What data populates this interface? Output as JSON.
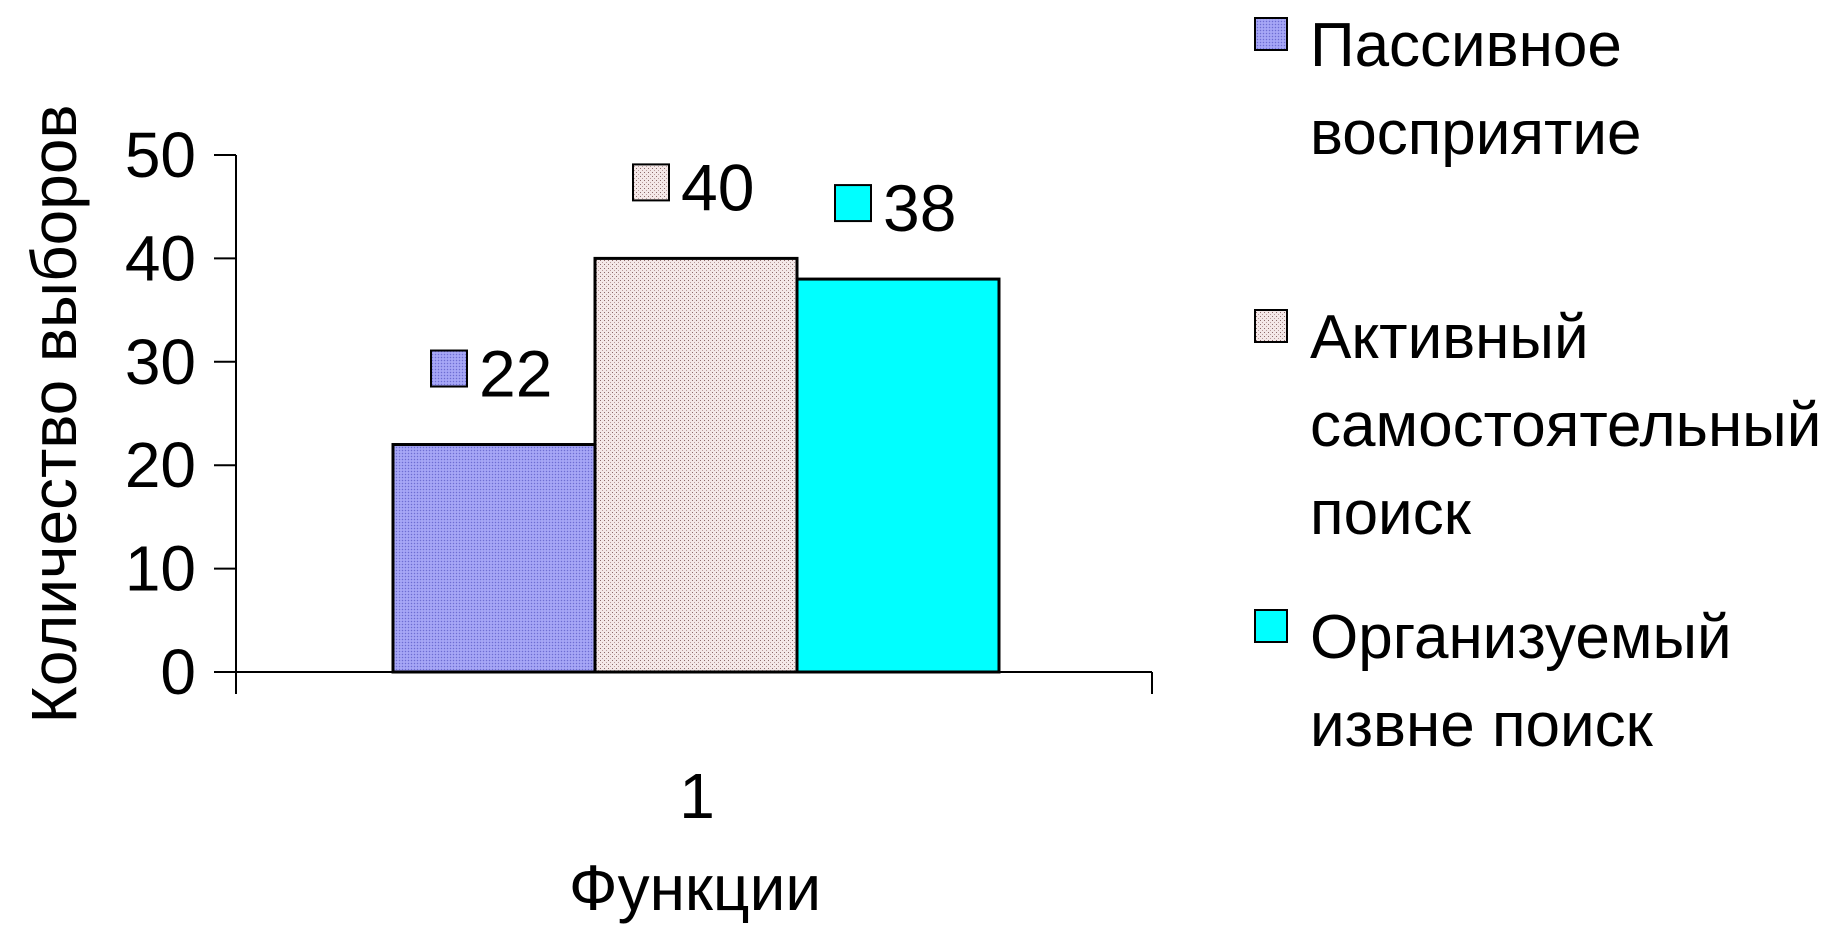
{
  "chart_data": {
    "type": "bar",
    "categories": [
      "1"
    ],
    "series": [
      {
        "name": "Пассивное восприятие",
        "legend_lines": [
          "Пассивное",
          "восприятие"
        ],
        "values": [
          22
        ],
        "color": "#9999ee",
        "pattern": "dense-dots"
      },
      {
        "name": "Активный самостоятельный поиск",
        "legend_lines": [
          "Активный",
          "самостоятельный",
          "поиск"
        ],
        "values": [
          40
        ],
        "color": "#f2e4e4",
        "pattern": "sparse-dots"
      },
      {
        "name": "Организуемый извне поиск",
        "legend_lines": [
          "Организуемый",
          "извне поиск"
        ],
        "values": [
          38
        ],
        "color": "#00ffff",
        "pattern": "solid"
      }
    ],
    "data_labels": [
      "22",
      "40",
      "38"
    ],
    "xlabel": "Функции",
    "ylabel": "Количество выборов",
    "ylim": [
      0,
      50
    ],
    "yticks": [
      "0",
      "10",
      "20",
      "30",
      "40",
      "50"
    ],
    "grid": false,
    "legend_position": "right"
  }
}
